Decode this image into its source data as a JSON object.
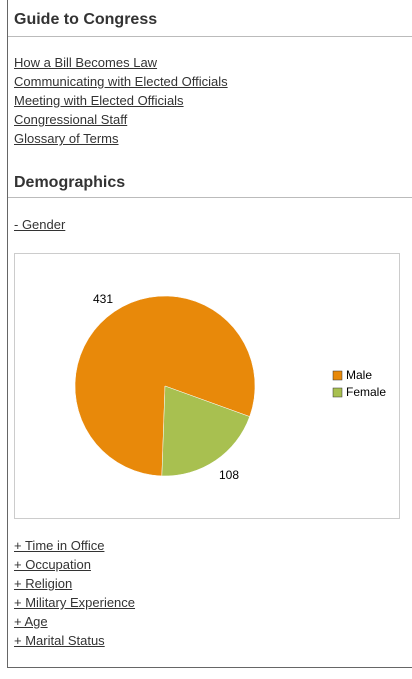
{
  "guide": {
    "title": "Guide to Congress",
    "links": [
      "How a Bill Becomes Law",
      "Communicating with Elected Officials",
      "Meeting with Elected Officials",
      "Congressional Staff",
      "Glossary of Terms"
    ]
  },
  "demographics": {
    "title": "Demographics",
    "open_section": "- Gender",
    "closed_sections": [
      "+ Time in Office",
      "+ Occupation",
      "+ Religion",
      "+ Military Experience",
      "+ Age",
      "+ Marital Status"
    ]
  },
  "chart_data": {
    "type": "pie",
    "categories": [
      "Male",
      "Female"
    ],
    "values": [
      431,
      108
    ],
    "colors": [
      "#e8890a",
      "#a8c050"
    ]
  }
}
